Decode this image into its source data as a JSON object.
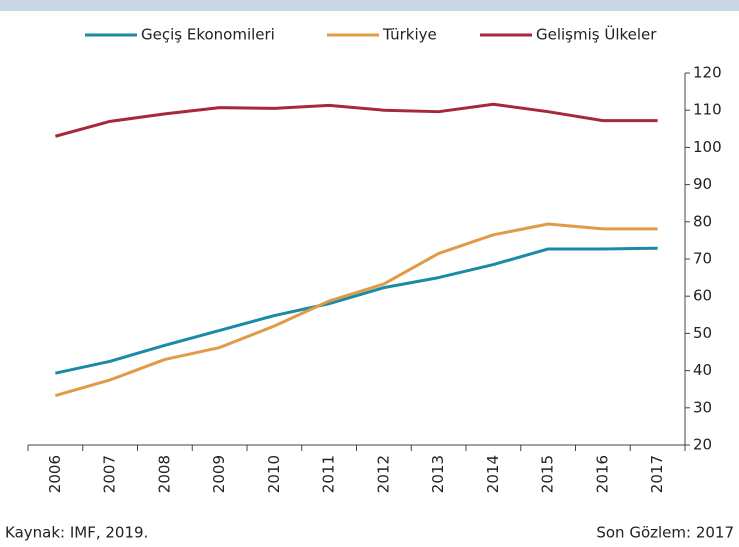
{
  "chart_data": {
    "type": "line",
    "categories": [
      "2006",
      "2007",
      "2008",
      "2009",
      "2010",
      "2011",
      "2012",
      "2013",
      "2014",
      "2015",
      "2016",
      "2017"
    ],
    "series": [
      {
        "name": "Geçiş Ekonomileri",
        "color": "#1b8aa6",
        "values": [
          39.3,
          42.5,
          46.8,
          50.8,
          54.8,
          58.0,
          62.3,
          65.0,
          68.5,
          72.7,
          72.7,
          72.9
        ]
      },
      {
        "name": "Türkiye",
        "color": "#e09b45",
        "values": [
          33.3,
          37.5,
          43.0,
          46.2,
          52.0,
          58.7,
          63.3,
          71.5,
          76.5,
          79.4,
          78.1,
          78.1
        ]
      },
      {
        "name": "Gelişmiş Ülkeler",
        "color": "#a6283a",
        "values": [
          103.0,
          107.0,
          109.0,
          110.7,
          110.5,
          111.3,
          110.0,
          109.6,
          111.6,
          109.6,
          107.2,
          107.2
        ]
      }
    ],
    "ylim": [
      20,
      120
    ],
    "yticks": [
      20,
      30,
      40,
      50,
      60,
      70,
      80,
      90,
      100,
      110,
      120
    ],
    "source": "Kaynak: IMF, 2019.",
    "note": "Son Gözlem: 2017"
  }
}
